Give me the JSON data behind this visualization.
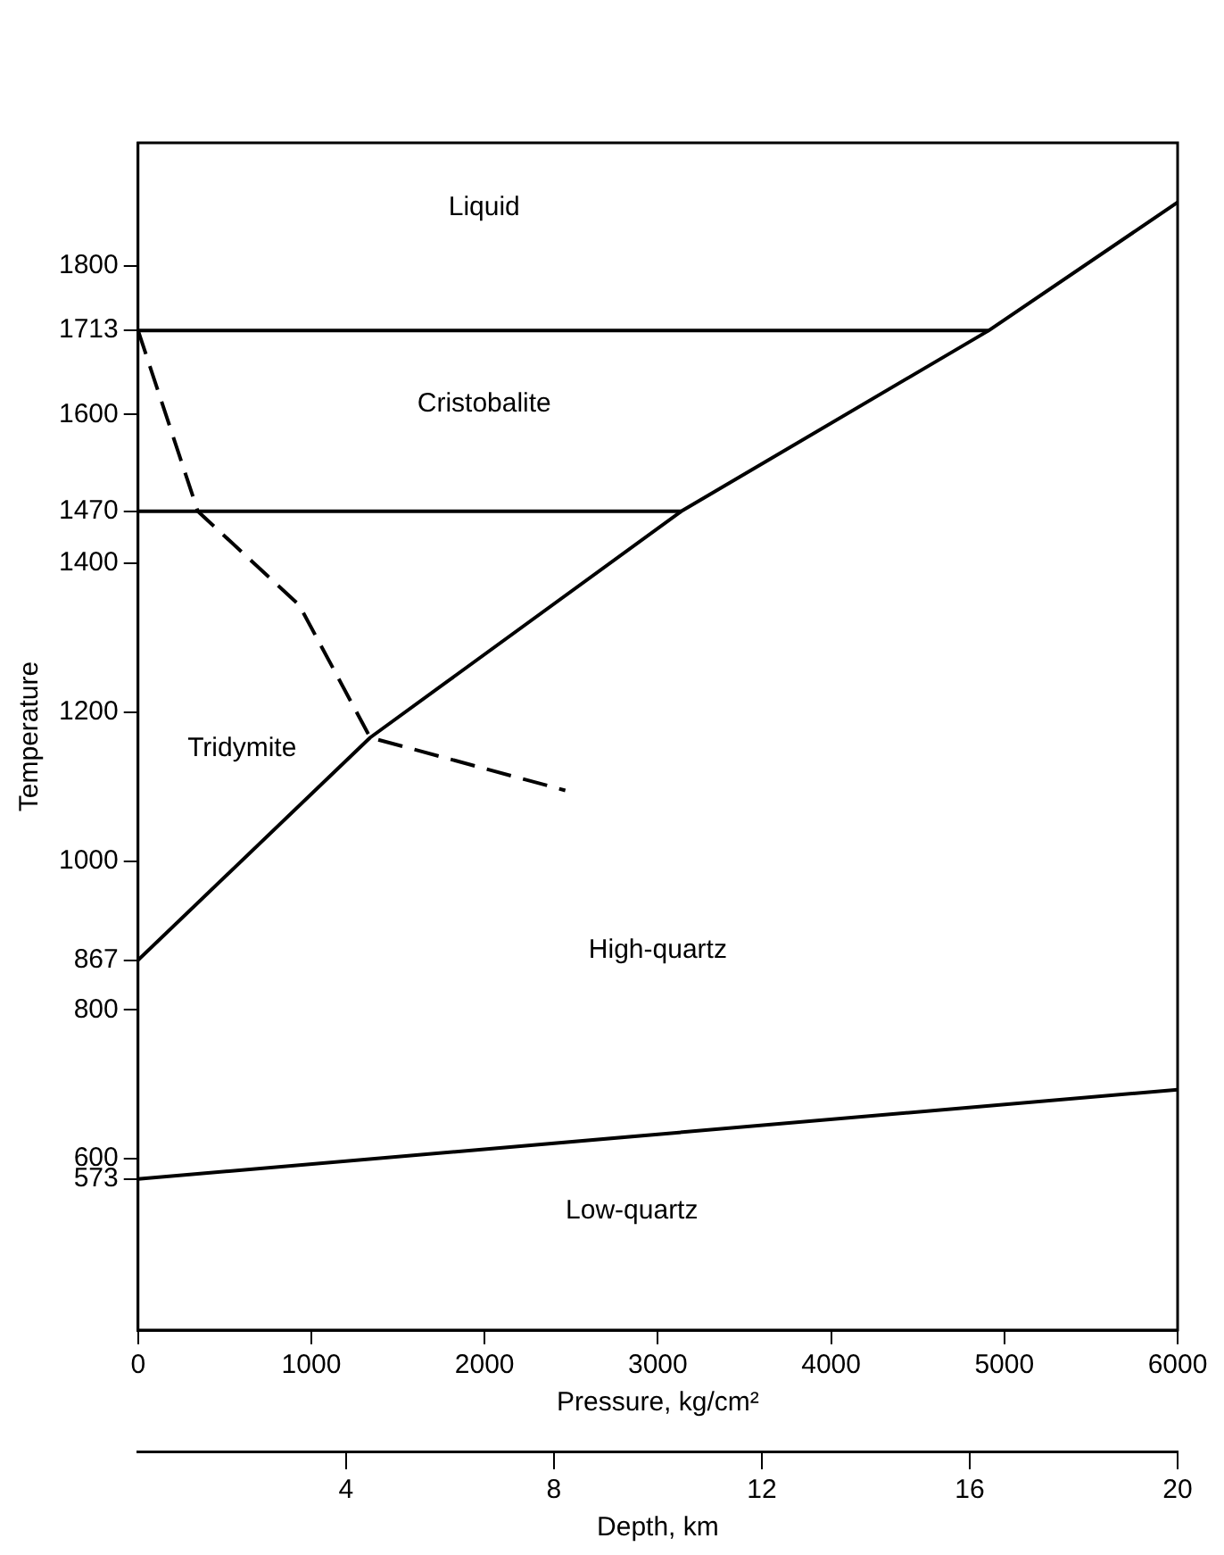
{
  "chart_data": {
    "type": "line",
    "xlabel": "Pressure, kg/cm²",
    "ylabel": "Temperature",
    "x2label": "Depth, km",
    "xlim": [
      0,
      6000
    ],
    "xticks": [
      0,
      1000,
      2000,
      3000,
      4000,
      5000,
      6000
    ],
    "x2lim": [
      0,
      20
    ],
    "x2ticks": [
      4,
      8,
      12,
      16,
      20
    ],
    "ylim": [
      370,
      1965
    ],
    "yticks": [
      573,
      600,
      800,
      867,
      1000,
      1200,
      1400,
      1470,
      1600,
      1713,
      1800
    ],
    "grid": false,
    "legend": false,
    "marker": "none",
    "series": [
      {
        "color": "#000000",
        "x": [
          0,
          4911
        ],
        "values": [
          1713,
          1713
        ]
      },
      {
        "color": "#000000",
        "x": [
          0,
          3135
        ],
        "values": [
          1470,
          1470
        ]
      },
      {
        "color": "#000000",
        "x": [
          0,
          1340,
          3135,
          4911,
          6000
        ],
        "values": [
          867,
          1166,
          1470,
          1713,
          1885
        ]
      },
      {
        "color": "#000000",
        "x": [
          0,
          345,
          930,
          1340,
          2466
        ],
        "values": [
          1713,
          1470,
          1344,
          1166,
          1095
        ],
        "line_style": "dashed"
      },
      {
        "color": "#000000",
        "x": [
          0,
          6000
        ],
        "values": [
          573,
          693
        ]
      }
    ],
    "annotations": [
      "Liquid",
      "Cristobalite",
      "Tridymite",
      "High-quartz",
      "Low-quartz"
    ]
  }
}
